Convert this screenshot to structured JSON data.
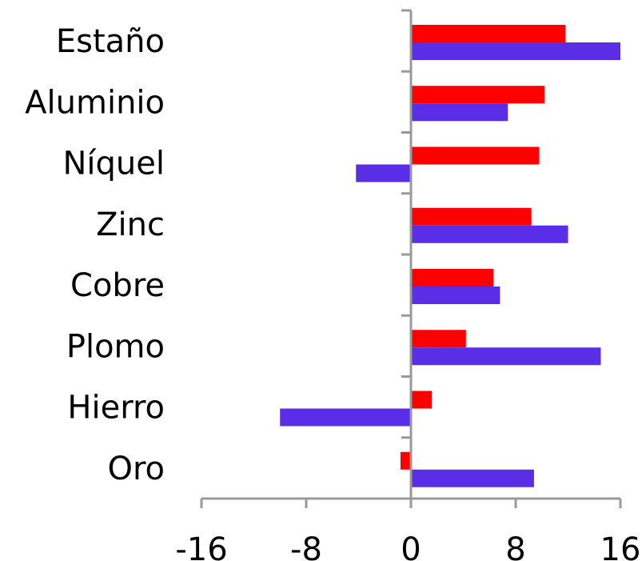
{
  "chart_data": {
    "type": "bar",
    "orientation": "horizontal",
    "title": "",
    "xlabel": "",
    "ylabel": "",
    "categories": [
      "Estaño",
      "Aluminio",
      "Níquel",
      "Zinc",
      "Cobre",
      "Plomo",
      "Hierro",
      "Oro"
    ],
    "series": [
      {
        "color": "#ff0000",
        "values": [
          11.8,
          10.2,
          9.8,
          9.2,
          6.3,
          4.2,
          1.6,
          -0.8
        ]
      },
      {
        "color": "#5a2ee6",
        "values": [
          16.0,
          7.4,
          -4.2,
          12.0,
          6.8,
          14.5,
          -10.0,
          9.4
        ]
      }
    ],
    "xlim": [
      -16,
      16
    ],
    "xticks": [
      "-16",
      "-8",
      "0",
      "8",
      "16"
    ],
    "xtick_values": [
      -16,
      -8,
      0,
      8,
      16
    ],
    "grid": false,
    "legend": "none"
  }
}
